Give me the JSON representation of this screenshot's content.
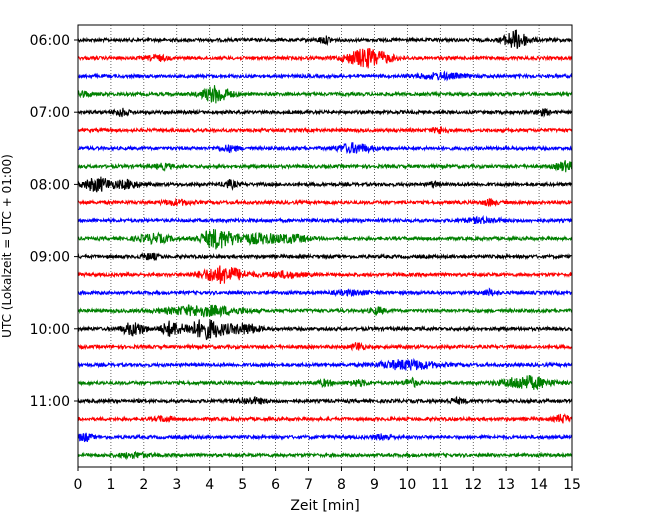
{
  "chart_data": {
    "type": "line",
    "xlabel": "Zeit  [min]",
    "ylabel": "UTC (Lokalzeit = UTC + 01:00)",
    "xlim": [
      0,
      15
    ],
    "x_ticks": [
      0,
      1,
      2,
      3,
      4,
      5,
      6,
      7,
      8,
      9,
      10,
      11,
      12,
      13,
      14,
      15
    ],
    "y_tick_labels": [
      "06:00",
      "07:00",
      "08:00",
      "09:00",
      "10:00",
      "11:00"
    ],
    "grid": "vertical-dotted",
    "trace_colors": [
      "#000000",
      "#ff0000",
      "#0000ff",
      "#008000"
    ],
    "series": [
      {
        "start": "06:00",
        "color": "#000000",
        "events": [
          {
            "t": 13.3,
            "amp": 1.0,
            "width": 0.25
          },
          {
            "t": 7.5,
            "amp": 0.35,
            "width": 0.15
          }
        ]
      },
      {
        "start": "06:15",
        "color": "#ff0000",
        "events": [
          {
            "t": 8.8,
            "amp": 1.0,
            "width": 0.45
          },
          {
            "t": 2.4,
            "amp": 0.3,
            "width": 0.2
          }
        ]
      },
      {
        "start": "06:30",
        "color": "#0000ff",
        "events": [
          {
            "t": 11.0,
            "amp": 0.3,
            "width": 0.5
          }
        ]
      },
      {
        "start": "06:45",
        "color": "#008000",
        "events": [
          {
            "t": 4.2,
            "amp": 0.9,
            "width": 0.3
          },
          {
            "t": 0.1,
            "amp": 0.3,
            "width": 0.2
          }
        ]
      },
      {
        "start": "07:00",
        "color": "#000000",
        "events": [
          {
            "t": 1.3,
            "amp": 0.4,
            "width": 0.15
          },
          {
            "t": 14.1,
            "amp": 0.3,
            "width": 0.15
          }
        ]
      },
      {
        "start": "07:15",
        "color": "#ff0000",
        "events": [
          {
            "t": 11.0,
            "amp": 0.35,
            "width": 0.15
          }
        ]
      },
      {
        "start": "07:30",
        "color": "#0000ff",
        "events": [
          {
            "t": 8.4,
            "amp": 0.5,
            "width": 0.35
          },
          {
            "t": 4.6,
            "amp": 0.3,
            "width": 0.2
          }
        ]
      },
      {
        "start": "07:45",
        "color": "#008000",
        "events": [
          {
            "t": 14.8,
            "amp": 0.5,
            "width": 0.2
          },
          {
            "t": 2.6,
            "amp": 0.25,
            "width": 0.2
          }
        ]
      },
      {
        "start": "08:00",
        "color": "#000000",
        "events": [
          {
            "t": 0.6,
            "amp": 0.75,
            "width": 0.3
          },
          {
            "t": 1.5,
            "amp": 0.45,
            "width": 0.25
          },
          {
            "t": 4.6,
            "amp": 0.4,
            "width": 0.15
          },
          {
            "t": 10.8,
            "amp": 0.3,
            "width": 0.1
          }
        ]
      },
      {
        "start": "08:15",
        "color": "#ff0000",
        "events": [
          {
            "t": 3.0,
            "amp": 0.25,
            "width": 0.3
          },
          {
            "t": 12.5,
            "amp": 0.3,
            "width": 0.15
          }
        ]
      },
      {
        "start": "08:30",
        "color": "#0000ff",
        "events": [
          {
            "t": 12.3,
            "amp": 0.25,
            "width": 0.4
          }
        ]
      },
      {
        "start": "08:45",
        "color": "#008000",
        "events": [
          {
            "t": 4.2,
            "amp": 1.0,
            "width": 0.35
          },
          {
            "t": 2.3,
            "amp": 0.45,
            "width": 0.35
          },
          {
            "t": 5.5,
            "amp": 0.5,
            "width": 0.6
          },
          {
            "t": 6.6,
            "amp": 0.3,
            "width": 0.3
          }
        ]
      },
      {
        "start": "09:00",
        "color": "#000000",
        "events": [
          {
            "t": 2.2,
            "amp": 0.3,
            "width": 0.2
          }
        ]
      },
      {
        "start": "09:15",
        "color": "#ff0000",
        "events": [
          {
            "t": 4.4,
            "amp": 0.9,
            "width": 0.45
          },
          {
            "t": 6.3,
            "amp": 0.3,
            "width": 0.4
          }
        ]
      },
      {
        "start": "09:30",
        "color": "#0000ff",
        "events": [
          {
            "t": 12.5,
            "amp": 0.3,
            "width": 0.15
          },
          {
            "t": 8.3,
            "amp": 0.2,
            "width": 0.4
          }
        ]
      },
      {
        "start": "09:45",
        "color": "#008000",
        "events": [
          {
            "t": 3.8,
            "amp": 0.55,
            "width": 0.8
          },
          {
            "t": 9.1,
            "amp": 0.35,
            "width": 0.15
          }
        ]
      },
      {
        "start": "10:00",
        "color": "#000000",
        "events": [
          {
            "t": 1.7,
            "amp": 0.7,
            "width": 0.25
          },
          {
            "t": 2.8,
            "amp": 0.75,
            "width": 0.2
          },
          {
            "t": 3.9,
            "amp": 1.0,
            "width": 0.45
          },
          {
            "t": 5.1,
            "amp": 0.5,
            "width": 0.3
          }
        ]
      },
      {
        "start": "10:15",
        "color": "#ff0000",
        "events": [
          {
            "t": 8.5,
            "amp": 0.45,
            "width": 0.12
          }
        ]
      },
      {
        "start": "10:30",
        "color": "#0000ff",
        "events": [
          {
            "t": 10.0,
            "amp": 0.5,
            "width": 0.6
          }
        ]
      },
      {
        "start": "10:45",
        "color": "#008000",
        "events": [
          {
            "t": 13.6,
            "amp": 0.7,
            "width": 0.5
          },
          {
            "t": 10.1,
            "amp": 0.45,
            "width": 0.15
          },
          {
            "t": 7.5,
            "amp": 0.3,
            "width": 0.15
          },
          {
            "t": 8.5,
            "amp": 0.3,
            "width": 0.2
          }
        ]
      },
      {
        "start": "11:00",
        "color": "#000000",
        "events": [
          {
            "t": 5.3,
            "amp": 0.3,
            "width": 0.3
          },
          {
            "t": 11.5,
            "amp": 0.25,
            "width": 0.2
          }
        ]
      },
      {
        "start": "11:15",
        "color": "#ff0000",
        "events": [
          {
            "t": 14.7,
            "amp": 0.45,
            "width": 0.15
          },
          {
            "t": 2.6,
            "amp": 0.25,
            "width": 0.2
          }
        ]
      },
      {
        "start": "11:30",
        "color": "#0000ff",
        "events": [
          {
            "t": 0.2,
            "amp": 0.4,
            "width": 0.15
          },
          {
            "t": 9.3,
            "amp": 0.3,
            "width": 0.2
          }
        ]
      },
      {
        "start": "11:45",
        "color": "#008000",
        "events": [
          {
            "t": 1.7,
            "amp": 0.25,
            "width": 0.3
          }
        ]
      }
    ]
  }
}
